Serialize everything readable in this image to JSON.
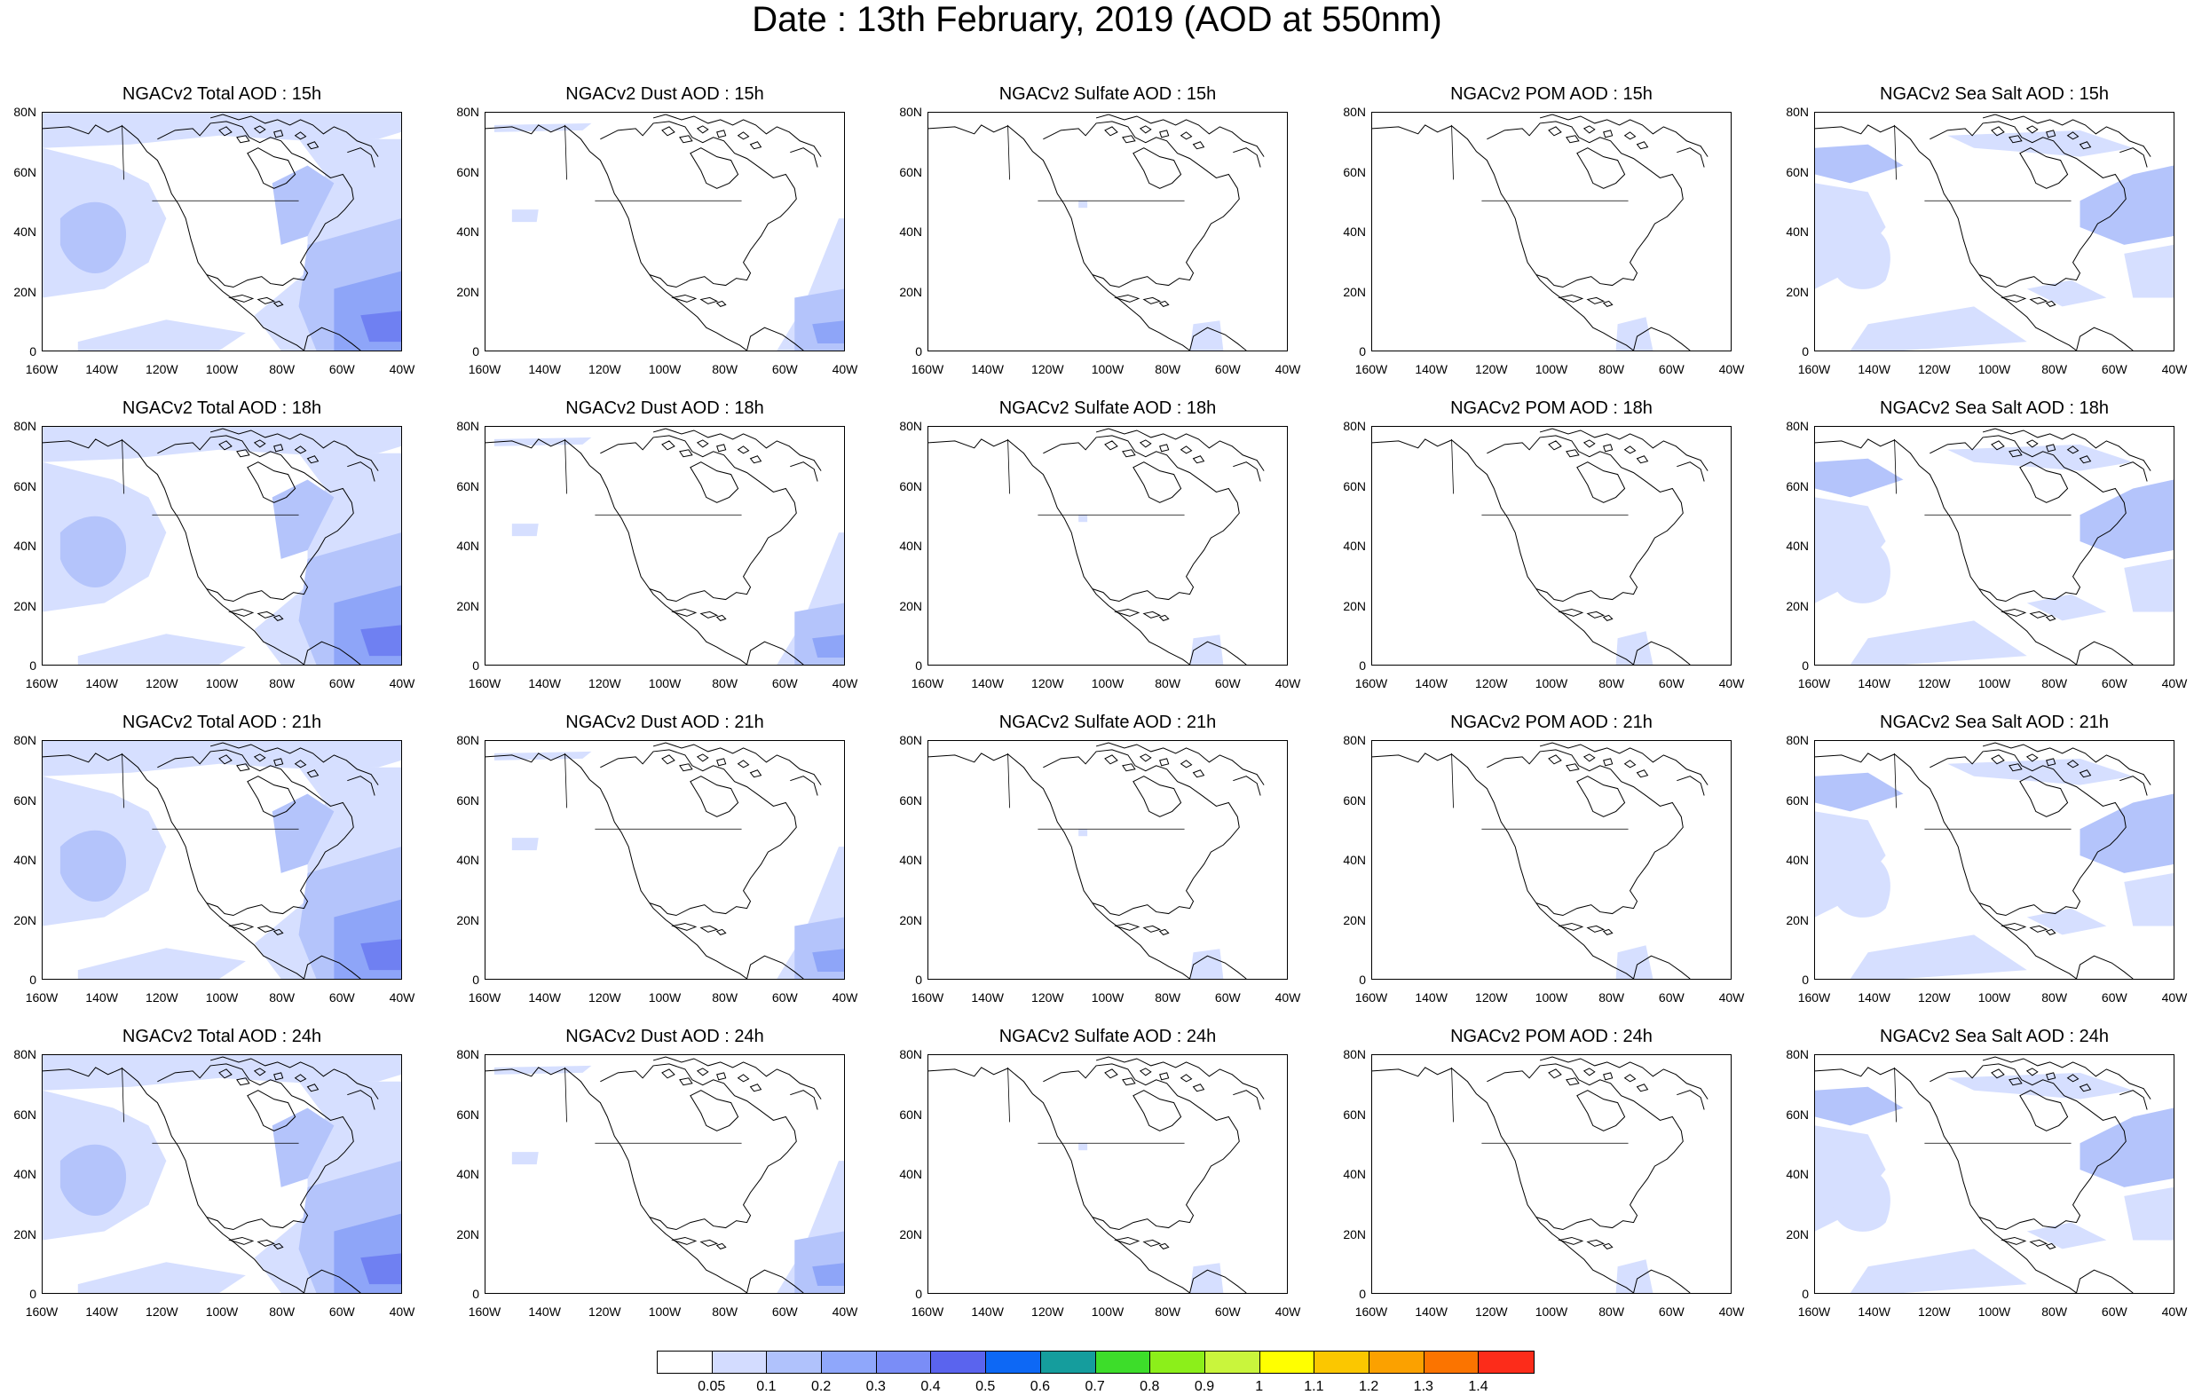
{
  "title": "Date : 13th February, 2019 (AOD at 550nm)",
  "panels": [
    [
      "NGACv2 Total AOD : 15h",
      "NGACv2 Dust AOD : 15h",
      "NGACv2 Sulfate AOD : 15h",
      "NGACv2 POM AOD : 15h",
      "NGACv2 Sea Salt AOD : 15h"
    ],
    [
      "NGACv2 Total AOD : 18h",
      "NGACv2 Dust AOD : 18h",
      "NGACv2 Sulfate AOD : 18h",
      "NGACv2 POM AOD : 18h",
      "NGACv2 Sea Salt AOD : 18h"
    ],
    [
      "NGACv2 Total AOD : 21h",
      "NGACv2 Dust AOD : 21h",
      "NGACv2 Sulfate AOD : 21h",
      "NGACv2 POM AOD : 21h",
      "NGACv2 Sea Salt AOD : 21h"
    ],
    [
      "NGACv2 Total AOD : 24h",
      "NGACv2 Dust AOD : 24h",
      "NGACv2 Sulfate AOD : 24h",
      "NGACv2 POM AOD : 24h",
      "NGACv2 Sea Salt  AOD : 24h"
    ]
  ],
  "y_ticks": [
    "80N",
    "60N",
    "40N",
    "20N",
    "0"
  ],
  "x_ticks": [
    "160W",
    "140W",
    "120W",
    "100W",
    "80W",
    "60W",
    "40W"
  ],
  "colorbar": {
    "labels": [
      "0.05",
      "0.1",
      "0.2",
      "0.3",
      "0.4",
      "0.5",
      "0.6",
      "0.7",
      "0.8",
      "0.9",
      "1",
      "1.1",
      "1.2",
      "1.3",
      "1.4"
    ],
    "colors": [
      "#ffffff",
      "#d3dcff",
      "#b0c2fc",
      "#8fa7fb",
      "#7a8df7",
      "#5a64ee",
      "#0d68f5",
      "#159d9d",
      "#3ddd2a",
      "#8cef1a",
      "#c9f53c",
      "#ffff00",
      "#fbc700",
      "#fba100",
      "#fb7400",
      "#fc2c1a"
    ]
  },
  "field_colors": {
    "light": "#d6dfff",
    "mid": "#b4c4fb",
    "strong": "#8ea5f8",
    "deep": "#6f80f2"
  }
}
